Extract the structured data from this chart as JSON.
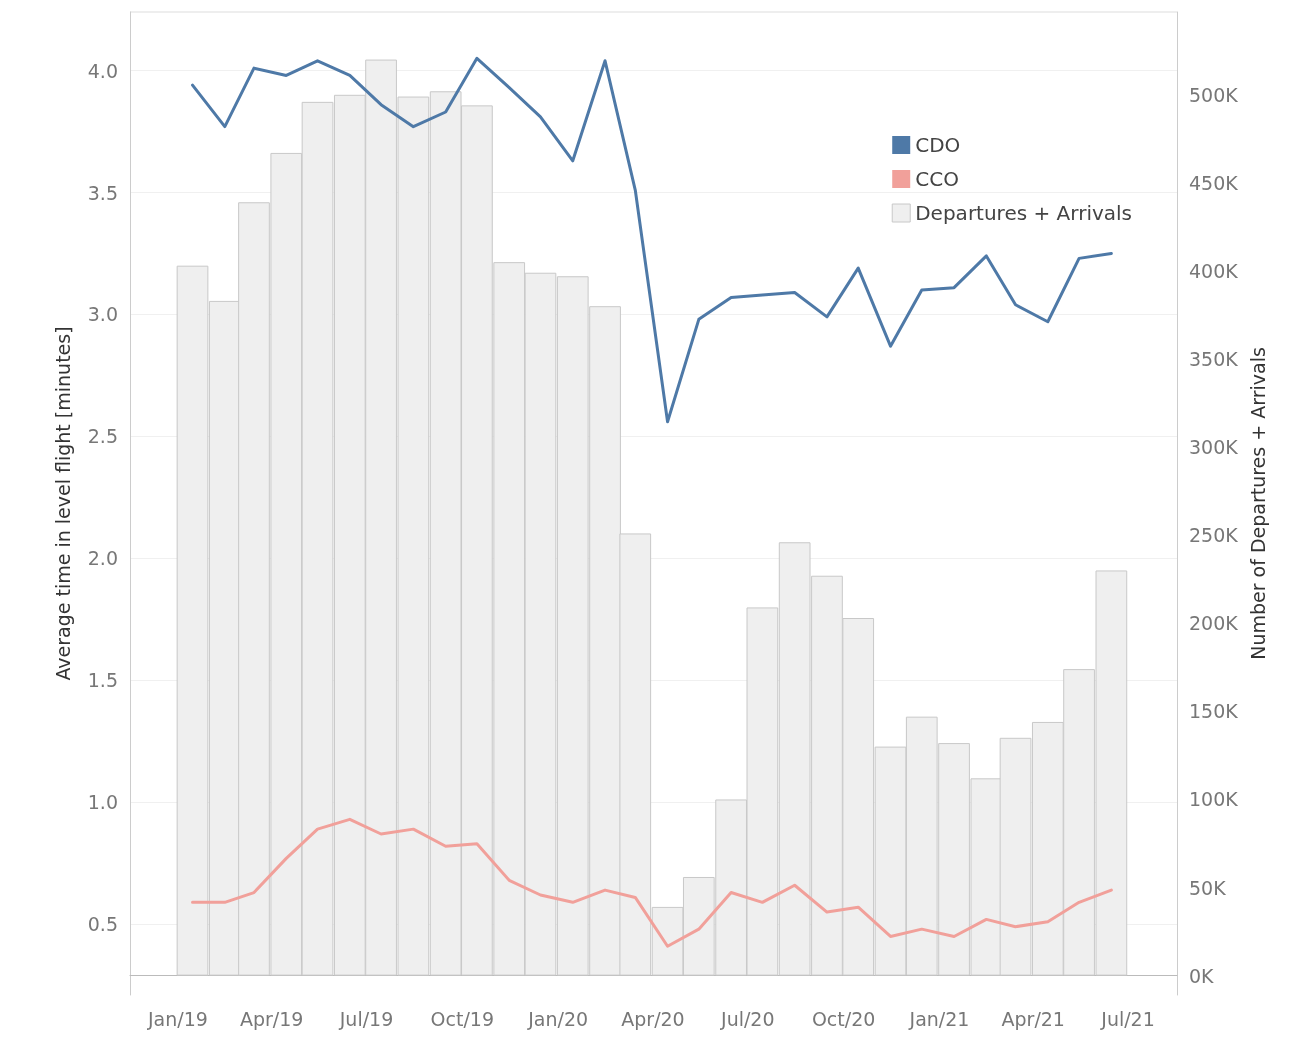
{
  "chart_data": {
    "type": "line",
    "ylabel": "Average time in level flight [minutes]",
    "y2label": "Number of Departures + Arrivals",
    "x": [
      "2019-01-15",
      "2019-02-15",
      "2019-03-15",
      "2019-04-15",
      "2019-05-15",
      "2019-06-15",
      "2019-07-15",
      "2019-08-15",
      "2019-09-15",
      "2019-10-15",
      "2019-11-15",
      "2019-12-15",
      "2020-01-15",
      "2020-02-15",
      "2020-03-15",
      "2020-04-15",
      "2020-05-15",
      "2020-06-15",
      "2020-07-15",
      "2020-08-15",
      "2020-09-15",
      "2020-10-15",
      "2020-11-15",
      "2020-12-15",
      "2021-01-15",
      "2021-02-15",
      "2021-03-15",
      "2021-04-15",
      "2021-05-15",
      "2021-06-15"
    ],
    "xlim": [
      "2018-11-16",
      "2021-08-17"
    ],
    "xticks": [
      {
        "value": "2019-01",
        "label": "Jan/19"
      },
      {
        "value": "2019-04",
        "label": "Apr/19"
      },
      {
        "value": "2019-07",
        "label": "Jul/19"
      },
      {
        "value": "2019-10",
        "label": "Oct/19"
      },
      {
        "value": "2020-01",
        "label": "Jan/20"
      },
      {
        "value": "2020-04",
        "label": "Apr/20"
      },
      {
        "value": "2020-07",
        "label": "Jul/20"
      },
      {
        "value": "2020-10",
        "label": "Oct/20"
      },
      {
        "value": "2021-01",
        "label": "Jan/21"
      },
      {
        "value": "2021-04",
        "label": "Apr/21"
      },
      {
        "value": "2021-07",
        "label": "Jul/21"
      }
    ],
    "ylim": [
      0.21,
      4.24
    ],
    "yticks": [
      0.5,
      {
        "value": 1,
        "label": "1.0"
      },
      1.5,
      {
        "value": 2,
        "label": "2.0"
      },
      2.5,
      {
        "value": 3,
        "label": "3.0"
      },
      3.5,
      {
        "value": 4,
        "label": "4.0"
      }
    ],
    "y2lim": [
      -11,
      547
    ],
    "y2ticks": [
      {
        "value": 0,
        "label": "0K"
      },
      {
        "value": 50,
        "label": "50K"
      },
      {
        "value": 100,
        "label": "100K"
      },
      {
        "value": 150,
        "label": "150K"
      },
      {
        "value": 200,
        "label": "200K"
      },
      {
        "value": 250,
        "label": "250K"
      },
      {
        "value": 300,
        "label": "300K"
      },
      {
        "value": 350,
        "label": "350K"
      },
      {
        "value": 400,
        "label": "400K"
      },
      {
        "value": 450,
        "label": "450K"
      },
      {
        "value": 500,
        "label": "500K"
      }
    ],
    "series": [
      {
        "name": "CDO",
        "color": "#4e79a7",
        "values": [
          3.94,
          3.77,
          4.01,
          3.98,
          4.04,
          3.98,
          3.86,
          3.77,
          3.83,
          4.05,
          3.93,
          3.81,
          3.63,
          4.04,
          3.51,
          2.56,
          2.98,
          3.07,
          3.08,
          3.09,
          2.99,
          3.19,
          2.87,
          3.1,
          3.11,
          3.24,
          3.04,
          2.97,
          3.23,
          3.25
        ]
      },
      {
        "name": "CCO",
        "color": "#f1a09a",
        "values": [
          0.59,
          0.59,
          0.63,
          0.77,
          0.89,
          0.93,
          0.87,
          0.89,
          0.82,
          0.83,
          0.68,
          0.62,
          0.59,
          0.64,
          0.61,
          0.41,
          0.48,
          0.63,
          0.59,
          0.66,
          0.55,
          0.57,
          0.45,
          0.48,
          0.45,
          0.52,
          0.49,
          0.51,
          0.59,
          0.64
        ]
      },
      {
        "name": "Departures + Arrivals",
        "type": "bar",
        "axis": "y2",
        "color": "#efefef",
        "values": [
          403,
          383,
          439,
          467,
          496,
          500,
          520,
          499,
          502,
          494,
          405,
          399,
          397,
          380,
          251,
          39,
          56,
          100,
          209,
          246,
          227,
          203,
          130,
          147,
          132,
          112,
          135,
          144,
          174,
          230
        ]
      }
    ],
    "grid": "y",
    "legend": "top right",
    "marker": "none",
    "line_style": "solid"
  }
}
